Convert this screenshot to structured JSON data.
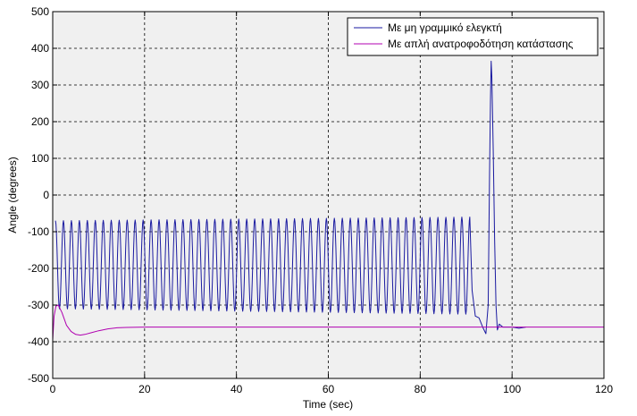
{
  "chart_data": {
    "type": "line",
    "title": "",
    "xlabel": "Time (sec)",
    "ylabel": "Angle (degrees)",
    "xlim": [
      0,
      120
    ],
    "ylim": [
      -500,
      500
    ],
    "xticks": [
      0,
      20,
      40,
      60,
      80,
      100,
      120
    ],
    "yticks": [
      -500,
      -400,
      -300,
      -200,
      -100,
      0,
      100,
      200,
      300,
      400,
      500
    ],
    "grid": true,
    "grid_style": "dashed",
    "plot_background": "#f0f0f0",
    "legend_position": "top-right",
    "series": [
      {
        "name": "Με μη γραμμικό ελεγκτή",
        "color": "#1a1aa0",
        "oscillation": {
          "x_start": 0.6,
          "x_end": 90.8,
          "cycles": 52,
          "y_max_start": -70,
          "y_max_end": -60,
          "y_min_start": -310,
          "y_min_end": -325
        },
        "points": [
          [
            90.8,
            -60
          ],
          [
            91.3,
            -260
          ],
          [
            92.0,
            -330
          ],
          [
            92.8,
            -335
          ],
          [
            93.6,
            -360
          ],
          [
            94.3,
            -378
          ],
          [
            94.8,
            -300
          ],
          [
            95.1,
            60
          ],
          [
            95.3,
            260
          ],
          [
            95.45,
            365
          ],
          [
            95.6,
            320
          ],
          [
            95.9,
            120
          ],
          [
            96.2,
            -120
          ],
          [
            96.5,
            -300
          ],
          [
            96.8,
            -368
          ],
          [
            97.2,
            -352
          ],
          [
            98.0,
            -360
          ],
          [
            100,
            -360
          ],
          [
            101.5,
            -363
          ],
          [
            103,
            -360
          ]
        ]
      },
      {
        "name": "Με απλή ανατροφοδότηση κατάστασης",
        "color": "#b000b0",
        "points": [
          [
            0,
            -395
          ],
          [
            0.3,
            -330
          ],
          [
            0.7,
            -303
          ],
          [
            1.2,
            -300
          ],
          [
            2.0,
            -320
          ],
          [
            3.0,
            -355
          ],
          [
            4.0,
            -372
          ],
          [
            5.0,
            -380
          ],
          [
            6.0,
            -382
          ],
          [
            7.0,
            -380
          ],
          [
            8.5,
            -375
          ],
          [
            10.0,
            -370
          ],
          [
            12.0,
            -365
          ],
          [
            14.0,
            -362
          ],
          [
            16.0,
            -361
          ],
          [
            20.0,
            -360
          ],
          [
            40.0,
            -360
          ],
          [
            60.0,
            -360
          ],
          [
            80.0,
            -360
          ],
          [
            100.0,
            -360
          ],
          [
            120.0,
            -360
          ]
        ]
      }
    ]
  }
}
